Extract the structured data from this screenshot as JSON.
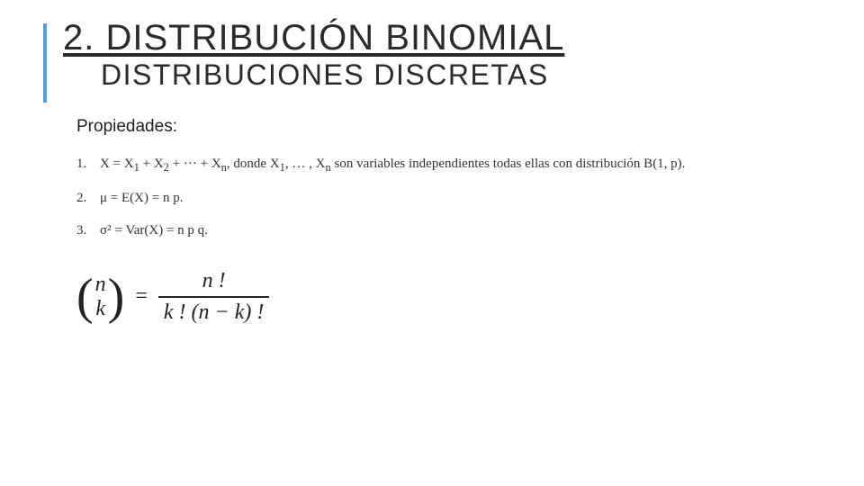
{
  "accent_color": "#5b9bd5",
  "header": {
    "title": "2. DISTRIBUCIÓN BINOMIAL",
    "subtitle": "DISTRIBUCIONES DISCRETAS"
  },
  "properties": {
    "heading": "Propiedades:",
    "items": [
      {
        "num": "1.",
        "prefix": "X = X",
        "sub1": "1",
        "mid1": " + X",
        "sub2": "2",
        "mid2": " + ··· + X",
        "subn": "n",
        "after_sum": ", donde X",
        "sub1b": "1",
        "dots": ", … , X",
        "subnb": "n",
        "tail": " son variables independientes todas ellas con distribución B(1, p)."
      },
      {
        "num": "2.",
        "text": "μ = E(X) = n p."
      },
      {
        "num": "3.",
        "text": "σ² = Var(X) = n p q."
      }
    ]
  },
  "binomial": {
    "n": "n",
    "k": "k",
    "eq": "=",
    "numerator": "n !",
    "denominator": "k ! (n − k) !"
  }
}
